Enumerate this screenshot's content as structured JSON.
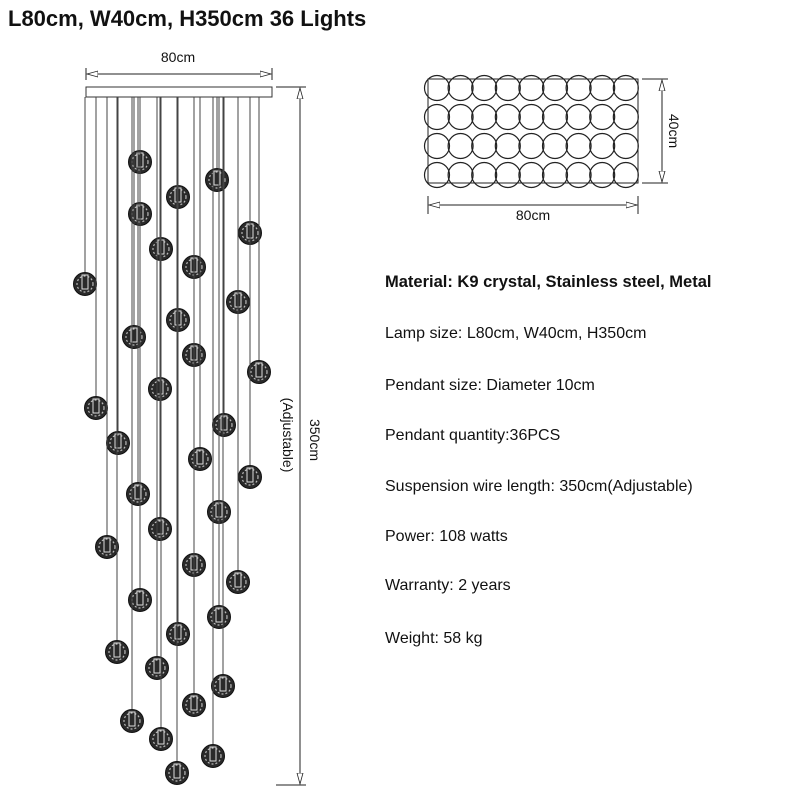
{
  "title": "L80cm, W40cm, H350cm 36 Lights",
  "front_view": {
    "width_label": "80cm",
    "height_label": "350cm",
    "height_note": "(Adjustable)",
    "pendant_count": 36
  },
  "top_view": {
    "width_label": "80cm",
    "depth_label": "40cm",
    "rows": 4,
    "columns": 9
  },
  "specs": [
    "Material: K9 crystal, Stainless steel, Metal",
    "Lamp size: L80cm, W40cm, H350cm",
    "Pendant size: Diameter 10cm",
    "Pendant quantity:36PCS",
    "Suspension wire length: 350cm(Adjustable)",
    "Power: 108 watts",
    "Warranty: 2 years",
    "Weight: 58 kg"
  ]
}
